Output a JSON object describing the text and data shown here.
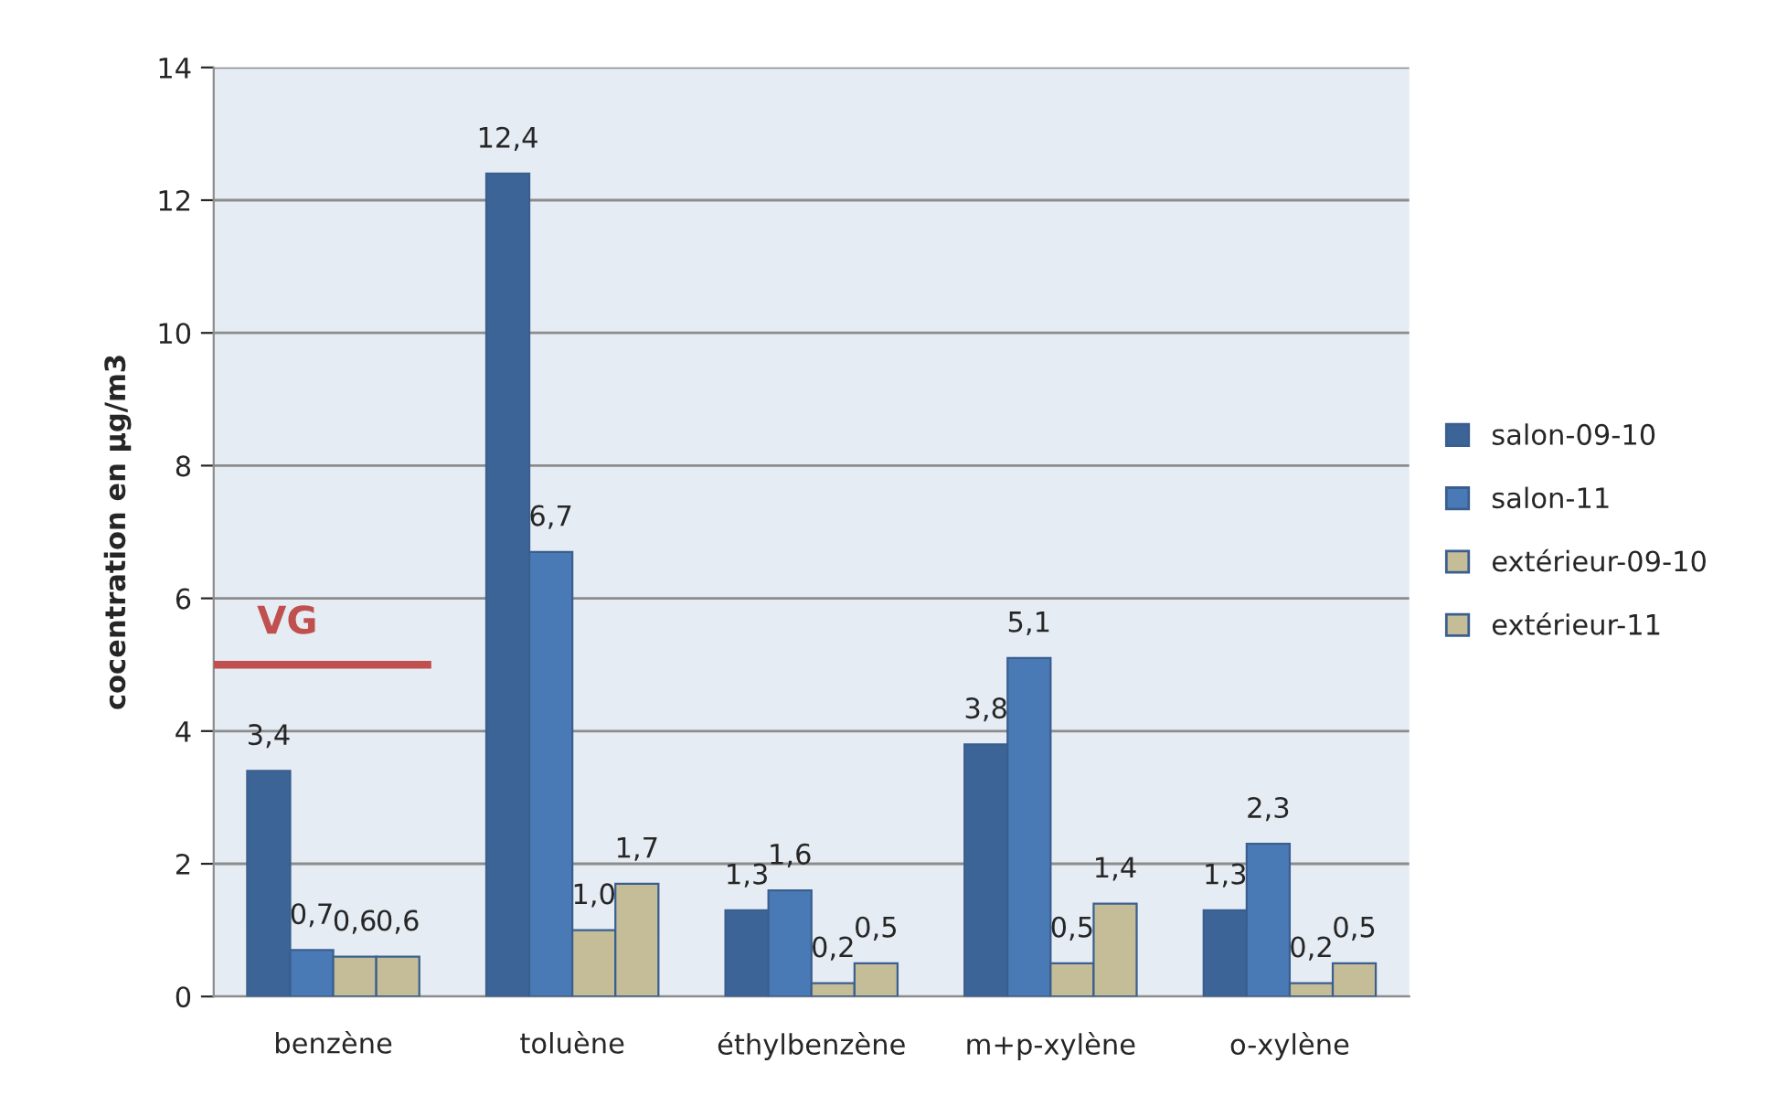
{
  "chart_data": {
    "type": "bar",
    "ylabel": "cocentration en µg/m3",
    "categories": [
      "benzène",
      "toluène",
      "éthylbenzène",
      "m+p-xylène",
      "o-xylène"
    ],
    "series": [
      {
        "name": "salon-09-10",
        "color": "#3c6496",
        "values": [
          3.4,
          12.4,
          1.3,
          3.8,
          1.3
        ],
        "value_labels": [
          "3,4",
          "12,4",
          "1,3",
          "3,8",
          "1,3"
        ]
      },
      {
        "name": "salon-11",
        "color": "#4a7ab5",
        "values": [
          0.7,
          6.7,
          1.6,
          5.1,
          2.3
        ],
        "value_labels": [
          "0,7",
          "6,7",
          "1,6",
          "5,1",
          "2,3"
        ]
      },
      {
        "name": "extérieur-09-10",
        "color": "#c4bd97",
        "values": [
          0.6,
          1.0,
          0.2,
          0.5,
          0.2
        ],
        "value_labels": [
          "0,6",
          "1,0",
          "0,2",
          "0,5",
          "0,2"
        ]
      },
      {
        "name": "extérieur-11",
        "color": "#c4bd97",
        "values": [
          0.6,
          1.7,
          0.5,
          1.4,
          0.5
        ],
        "value_labels": [
          "0,6",
          "1,7",
          "0,5",
          "1,4",
          "0,5"
        ]
      }
    ],
    "ylim": [
      0,
      14
    ],
    "yticks": [
      0,
      2,
      4,
      6,
      8,
      10,
      12,
      14
    ],
    "grid": "y",
    "legend": "right",
    "ref_lines": [
      {
        "axis": "y",
        "value": 5,
        "label": "VG",
        "color": "#c0504d"
      }
    ]
  }
}
